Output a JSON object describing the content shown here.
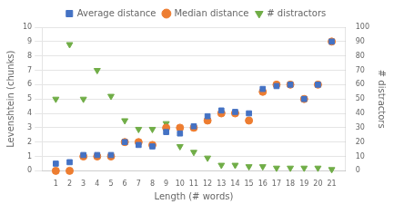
{
  "chart_data": {
    "type": "scatter",
    "x": [
      1,
      2,
      3,
      4,
      5,
      6,
      7,
      8,
      9,
      10,
      11,
      12,
      13,
      14,
      15,
      16,
      17,
      18,
      19,
      20,
      21
    ],
    "series": [
      {
        "name": "Average distance",
        "color": "#4472c4",
        "marker": "square",
        "values": [
          0.5,
          0.6,
          1.1,
          1.1,
          1.1,
          2.0,
          1.8,
          1.7,
          2.7,
          2.6,
          3.1,
          3.8,
          4.2,
          4.1,
          4.0,
          5.7,
          5.9,
          6.0,
          5.0,
          6.0,
          9.0
        ]
      },
      {
        "name": "Median distance",
        "color": "#ed7d31",
        "marker": "circle",
        "values": [
          0.0,
          0.0,
          1.0,
          1.0,
          1.0,
          2.0,
          2.0,
          1.8,
          3.0,
          3.0,
          3.0,
          3.5,
          4.0,
          4.0,
          3.5,
          5.5,
          6.0,
          6.0,
          5.0,
          6.0,
          9.0
        ]
      },
      {
        "name": "# distractors",
        "color": "#70ad47",
        "marker": "triangle_down",
        "axis": "y2",
        "values": [
          50,
          88,
          50,
          70,
          52,
          35,
          29,
          29,
          33,
          17,
          13,
          9,
          4,
          4,
          3,
          3,
          2,
          2,
          2,
          2,
          1
        ]
      }
    ],
    "xlabel": "Length (# words)",
    "ylabel": "Levenshtein (chunks)",
    "y2label": "# distractors",
    "xlim": [
      0,
      22
    ],
    "xticks": [
      1,
      2,
      3,
      4,
      5,
      6,
      7,
      8,
      9,
      10,
      11,
      12,
      13,
      14,
      15,
      16,
      17,
      18,
      19,
      20,
      21
    ],
    "ylim": [
      0,
      10
    ],
    "yticks": [
      0,
      1,
      2,
      3,
      4,
      5,
      6,
      7,
      8,
      9,
      10
    ],
    "y2lim": [
      0,
      100
    ],
    "y2ticks": [
      0,
      10,
      20,
      30,
      40,
      50,
      60,
      70,
      80,
      90,
      100
    ],
    "grid": true,
    "legend": "top"
  }
}
